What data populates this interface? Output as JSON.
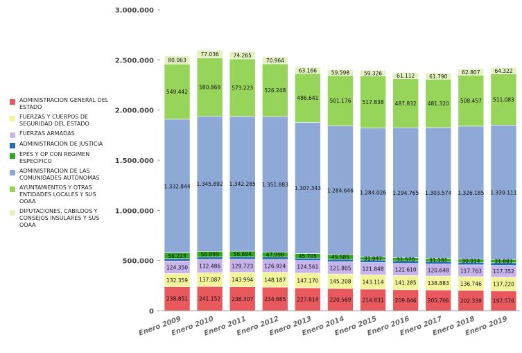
{
  "chart_data": {
    "type": "bar",
    "stacked": true,
    "title": "",
    "xlabel": "",
    "ylabel": "",
    "ylim": [
      0,
      3000000
    ],
    "yticks": [
      0,
      500000,
      1000000,
      1500000,
      2000000,
      2500000,
      3000000
    ],
    "ytick_labels": [
      "0",
      "500.000",
      "1.000.000",
      "1.500.000",
      "2.000.000",
      "2.500.000",
      "3.000.000"
    ],
    "categories": [
      "Enero 2009",
      "Enero 2010",
      "Enero 2011",
      "Enero 2012",
      "Enero 2013",
      "Enero 2014",
      "Enero 2015",
      "Enero 2016",
      "Enero 2017",
      "Enero 2018",
      "Enero 2019"
    ],
    "legend_placement": "left",
    "grid": false,
    "series": [
      {
        "name": "ADMINISTRACION GENERAL DEL ESTADO",
        "color": "#e8585c",
        "values": [
          238851,
          241152,
          238307,
          234685,
          227814,
          220569,
          214831,
          209046,
          205706,
          202339,
          197576
        ],
        "labels": [
          "238.851",
          "241.152",
          "238.307",
          "234.685",
          "227.814",
          "220.569",
          "214.831",
          "209.046",
          "205.706",
          "202.339",
          "197.576"
        ]
      },
      {
        "name": "FUERZAS Y CUERPOS DE SEGURIDAD DEL ESTADO",
        "color": "#f3f39a",
        "values": [
          132359,
          137087,
          143994,
          148187,
          147170,
          145208,
          143114,
          141285,
          138883,
          136746,
          137220
        ],
        "labels": [
          "132.359",
          "137.087",
          "143.994",
          "148.187",
          "147.170",
          "145.208",
          "143.114",
          "141.285",
          "138.883",
          "136.746",
          "137.220"
        ]
      },
      {
        "name": "FUERZAS ARMADAS",
        "color": "#c8b4ec",
        "values": [
          124350,
          132486,
          129723,
          126924,
          124561,
          121805,
          121848,
          121610,
          120648,
          117763,
          117352
        ],
        "labels": [
          "124.350",
          "132.486",
          "129.723",
          "126.924",
          "124.561",
          "121.805",
          "121.848",
          "121.610",
          "120.648",
          "117.763",
          "117.352"
        ]
      },
      {
        "name": "ADMINISTRACION DE JUSTICIA",
        "color": "#1f6fa8",
        "values": [
          24000,
          24500,
          25000,
          24800,
          24500,
          24700,
          25000,
          25200,
          25400,
          25500,
          25700
        ],
        "labels": []
      },
      {
        "name": "EPES Y OP CON REGIMEN ESPECIFICO",
        "color": "#2ea81c",
        "values": [
          56223,
          56899,
          56694,
          47998,
          45705,
          45585,
          31947,
          31570,
          31181,
          30934,
          31883
        ],
        "labels": [
          "56.223",
          "56.899",
          "56.694",
          "47.998",
          "45.705",
          "45.585",
          "31.947",
          "31.570",
          "31.181",
          "30.934",
          "31.883"
        ]
      },
      {
        "name": "ADMINISTRACION DE LAS COMUNIDADES AUTÓNOMAS",
        "color": "#8ea9d6",
        "values": [
          1332844,
          1345892,
          1342285,
          1351883,
          1307343,
          1284646,
          1284026,
          1294765,
          1303574,
          1326185,
          1339111
        ],
        "labels": [
          "1.332.844",
          "1.345.892",
          "1.342.285",
          "1.351.883",
          "1.307.343",
          "1.284.646",
          "1.284.026",
          "1.294.765",
          "1.303.574",
          "1.326.185",
          "1.339.111"
        ]
      },
      {
        "name": "AYUNTAMIENTOS Y OTRAS ENTIDADES LOCALES Y SUS OOAA",
        "color": "#96d45a",
        "values": [
          549442,
          580869,
          573223,
          526248,
          486641,
          501176,
          517838,
          487832,
          481320,
          508457,
          511083
        ],
        "labels": [
          "549.442",
          "580.869",
          "573.223",
          "526.248",
          "486.641",
          "501.176",
          "517.838",
          "487.832",
          "481.320",
          "508.457",
          "511.083"
        ]
      },
      {
        "name": "DIPUTACIONES, CABILDOS Y CONSEJOS INSULARES Y SUS OOAA",
        "color": "#e4f2bf",
        "values": [
          80063,
          77036,
          74265,
          70964,
          63166,
          59598,
          59326,
          61112,
          61790,
          62807,
          64322
        ],
        "labels": [
          "80.063",
          "77.036",
          "74.265",
          "70.964",
          "63.166",
          "59.598",
          "59.326",
          "61.112",
          "61.790",
          "62.807",
          "64.322"
        ]
      }
    ]
  }
}
